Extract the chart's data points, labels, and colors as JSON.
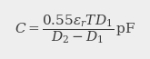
{
  "formula": "$C = \\dfrac{0.55\\varepsilon_r TD_1}{D_2 - D_1}\\,\\mathrm{pF}$",
  "background_color": "#eeeeee",
  "text_color": "#3a3a3a",
  "fontsize": 11.0,
  "fig_width": 1.65,
  "fig_height": 0.65,
  "dpi": 100
}
